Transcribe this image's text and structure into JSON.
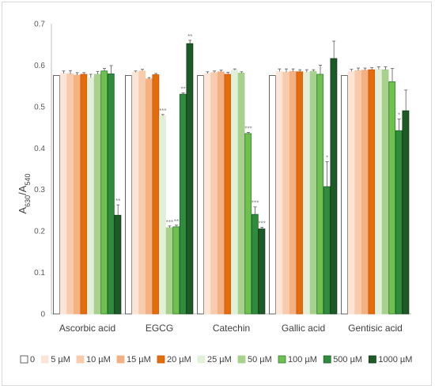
{
  "chart_data": {
    "type": "bar",
    "ylabel": {
      "main": "A",
      "sub1": "630",
      "sep": "/A",
      "sub2": "540"
    },
    "ylim": [
      0,
      0.7
    ],
    "yticks": [
      "0",
      "0.1",
      "0.2",
      "0.3",
      "0.4",
      "0.5",
      "0.6",
      "0.7"
    ],
    "categories": [
      "Ascorbic acid",
      "EGCG",
      "Catechin",
      "Gallic acid",
      "Gentisic acid"
    ],
    "legend_position": "bottom",
    "grid": false,
    "series": [
      {
        "name": "0",
        "color": "#ffffff",
        "stroke": "#404040",
        "values": [
          0.575,
          0.575,
          0.575,
          0.575,
          0.575
        ],
        "err": [
          0,
          0,
          0,
          0,
          0
        ],
        "sig": [
          "",
          "",
          "",
          "",
          ""
        ]
      },
      {
        "name": "5 µM",
        "color": "#fce4d6",
        "stroke": "#fce4d6",
        "values": [
          0.58,
          0.583,
          0.58,
          0.585,
          0.585
        ],
        "err": [
          0.006,
          0.003,
          0.004,
          0.006,
          0.005
        ],
        "sig": [
          "",
          "",
          "",
          "",
          ""
        ]
      },
      {
        "name": "10 µM",
        "color": "#f8cbad",
        "stroke": "#f8cbad",
        "values": [
          0.579,
          0.586,
          0.582,
          0.583,
          0.587
        ],
        "err": [
          0.008,
          0.004,
          0.004,
          0.008,
          0.006
        ],
        "sig": [
          "",
          "",
          "",
          "",
          ""
        ]
      },
      {
        "name": "15 µM",
        "color": "#f4b183",
        "stroke": "#f4b183",
        "values": [
          0.576,
          0.567,
          0.584,
          0.585,
          0.588
        ],
        "err": [
          0.006,
          0.003,
          0.004,
          0.006,
          0.005
        ],
        "sig": [
          "",
          "",
          "",
          "",
          ""
        ]
      },
      {
        "name": "20 µM",
        "color": "#e46c0a",
        "stroke": "#c55a11",
        "values": [
          0.578,
          0.577,
          0.578,
          0.584,
          0.589
        ],
        "err": [
          0.004,
          0.003,
          0.005,
          0.005,
          0.005
        ],
        "sig": [
          "",
          "",
          "",
          "",
          ""
        ]
      },
      {
        "name": "25 µM",
        "color": "#e2f0d9",
        "stroke": "#e2f0d9",
        "values": [
          0.57,
          0.478,
          0.588,
          0.583,
          0.59
        ],
        "err": [
          0.008,
          0.003,
          0.003,
          0.006,
          0.006
        ],
        "sig": [
          "",
          "***",
          "",
          "",
          ""
        ]
      },
      {
        "name": "50 µM",
        "color": "#a9d18e",
        "stroke": "#a9d18e",
        "values": [
          0.578,
          0.208,
          0.581,
          0.585,
          0.589
        ],
        "err": [
          0.007,
          0.004,
          0.003,
          0.004,
          0.007
        ],
        "sig": [
          "",
          "***",
          "",
          "",
          ""
        ]
      },
      {
        "name": "100 µM",
        "color": "#70c050",
        "stroke": "#2e7d32",
        "values": [
          0.586,
          0.21,
          0.435,
          0.578,
          0.56
        ],
        "err": [
          0.006,
          0.004,
          0.003,
          0.022,
          0.032
        ],
        "sig": [
          "",
          "**",
          "***",
          "",
          ""
        ]
      },
      {
        "name": "500 µM",
        "color": "#2f8c3c",
        "stroke": "#1e5c26",
        "values": [
          0.579,
          0.53,
          0.24,
          0.307,
          0.442
        ],
        "err": [
          0.02,
          0.003,
          0.018,
          0.06,
          0.028
        ],
        "sig": [
          "",
          "**",
          "***",
          "*",
          "*"
        ]
      },
      {
        "name": "1000 µM",
        "color": "#1e5a28",
        "stroke": "#103816",
        "values": [
          0.238,
          0.652,
          0.205,
          0.616,
          0.49
        ],
        "err": [
          0.025,
          0.008,
          0.004,
          0.042,
          0.05
        ],
        "sig": [
          "**",
          "**",
          "***",
          "",
          ""
        ]
      }
    ]
  }
}
